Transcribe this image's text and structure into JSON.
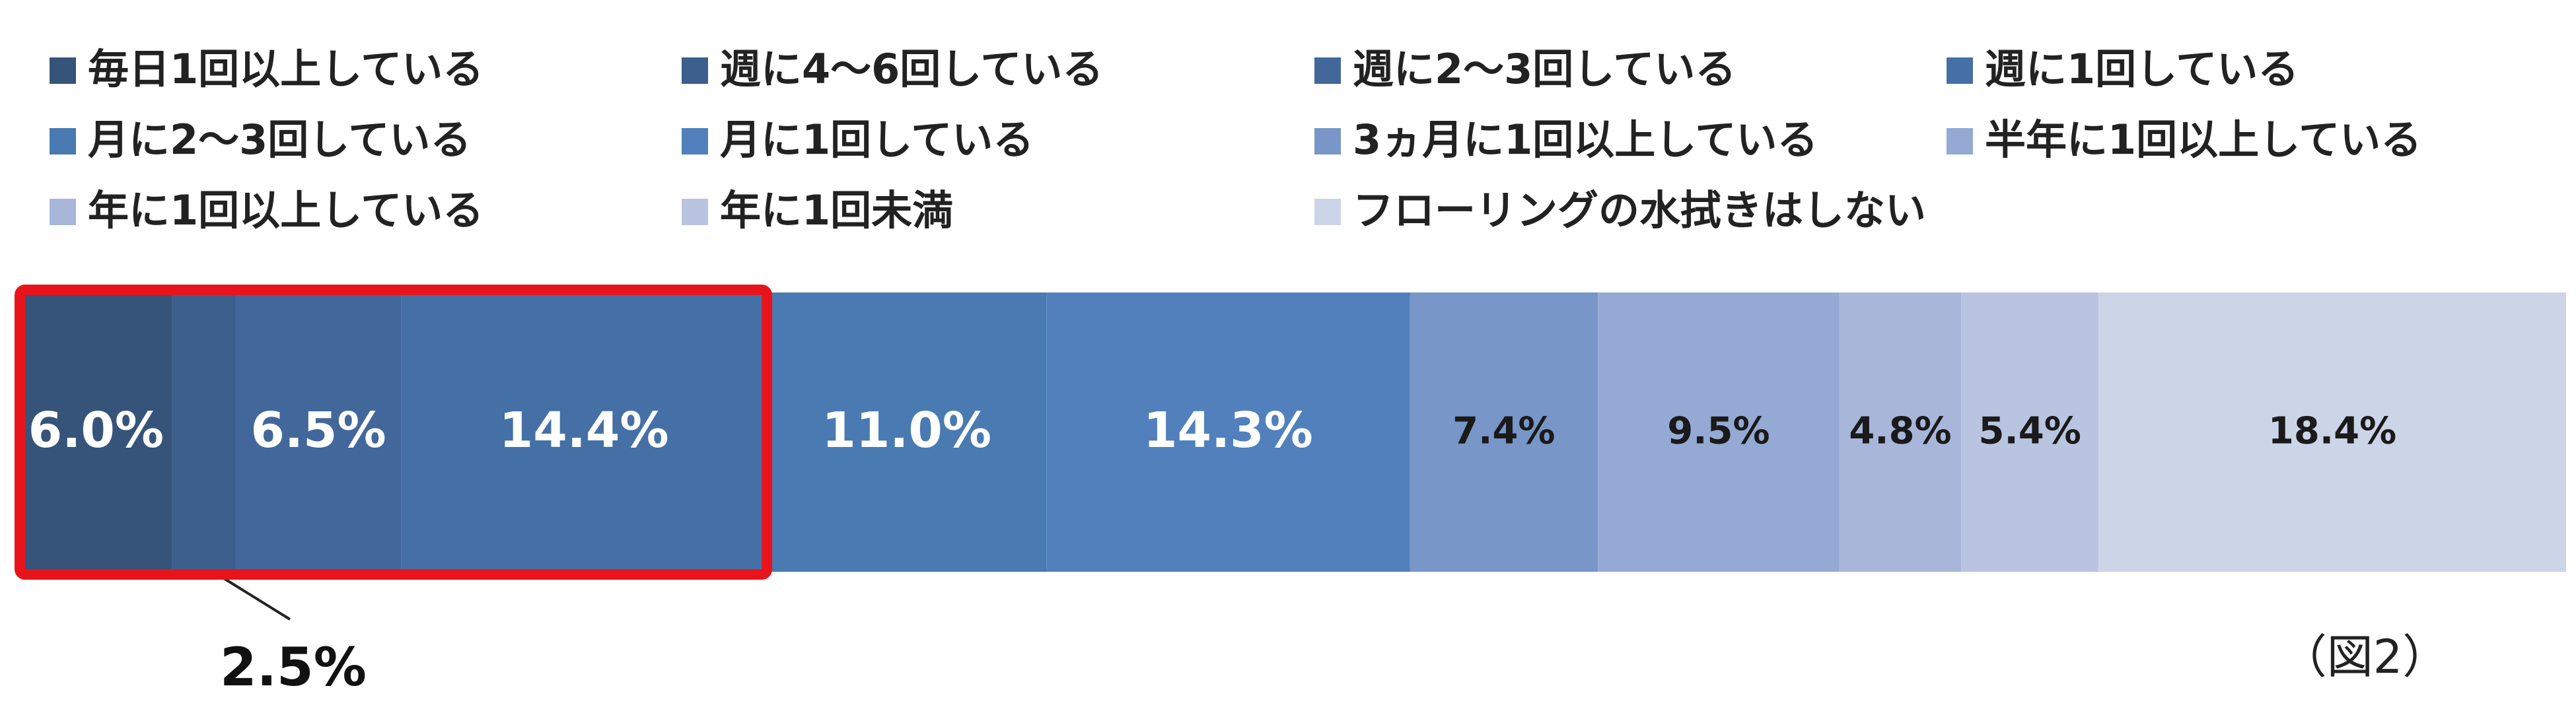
{
  "chart_data": {
    "type": "stacked-bar-100",
    "series": [
      {
        "name": "毎日1回以上している",
        "color": "#365479",
        "label_color": "#ffffff",
        "values": [
          6.0
        ],
        "value_labels": [
          "6.0%"
        ]
      },
      {
        "name": "週に4～6回している",
        "color": "#3c5f8d",
        "label_color": "#ffffff",
        "values": [
          2.5
        ],
        "value_labels": [
          "2.5%"
        ],
        "label_outside": true
      },
      {
        "name": "週に2～3回している",
        "color": "#42679b",
        "label_color": "#ffffff",
        "values": [
          6.5
        ],
        "value_labels": [
          "6.5%"
        ]
      },
      {
        "name": "週に1回している",
        "color": "#4570a6",
        "label_color": "#ffffff",
        "values": [
          14.4
        ],
        "value_labels": [
          "14.4%"
        ]
      },
      {
        "name": "月に2～3回している",
        "color": "#4a7ab2",
        "label_color": "#ffffff",
        "values": [
          11.0
        ],
        "value_labels": [
          "11.0%"
        ]
      },
      {
        "name": "月に1回している",
        "color": "#5180bd",
        "label_color": "#ffffff",
        "values": [
          14.3
        ],
        "value_labels": [
          "14.3%"
        ]
      },
      {
        "name": "3ヵ月に1回以上している",
        "color": "#7896c7",
        "label_color": "#1a1a1a",
        "values": [
          7.4
        ],
        "value_labels": [
          "7.4%"
        ]
      },
      {
        "name": "半年に1回以上している",
        "color": "#94a9d3",
        "label_color": "#1a1a1a",
        "values": [
          9.5
        ],
        "value_labels": [
          "9.5%"
        ]
      },
      {
        "name": "年に1回以上している",
        "color": "#a7b6d9",
        "label_color": "#1a1a1a",
        "values": [
          4.8
        ],
        "value_labels": [
          "4.8%"
        ]
      },
      {
        "name": "年に1回未満",
        "color": "#b9c4e0",
        "label_color": "#1a1a1a",
        "values": [
          5.4
        ],
        "value_labels": [
          "5.4%"
        ]
      },
      {
        "name": "フローリングの水拭きはしない",
        "color": "#ccd4e7",
        "label_color": "#1a1a1a",
        "values": [
          18.4
        ],
        "value_labels": [
          "18.4%"
        ]
      }
    ],
    "annotation": "（図2）"
  }
}
